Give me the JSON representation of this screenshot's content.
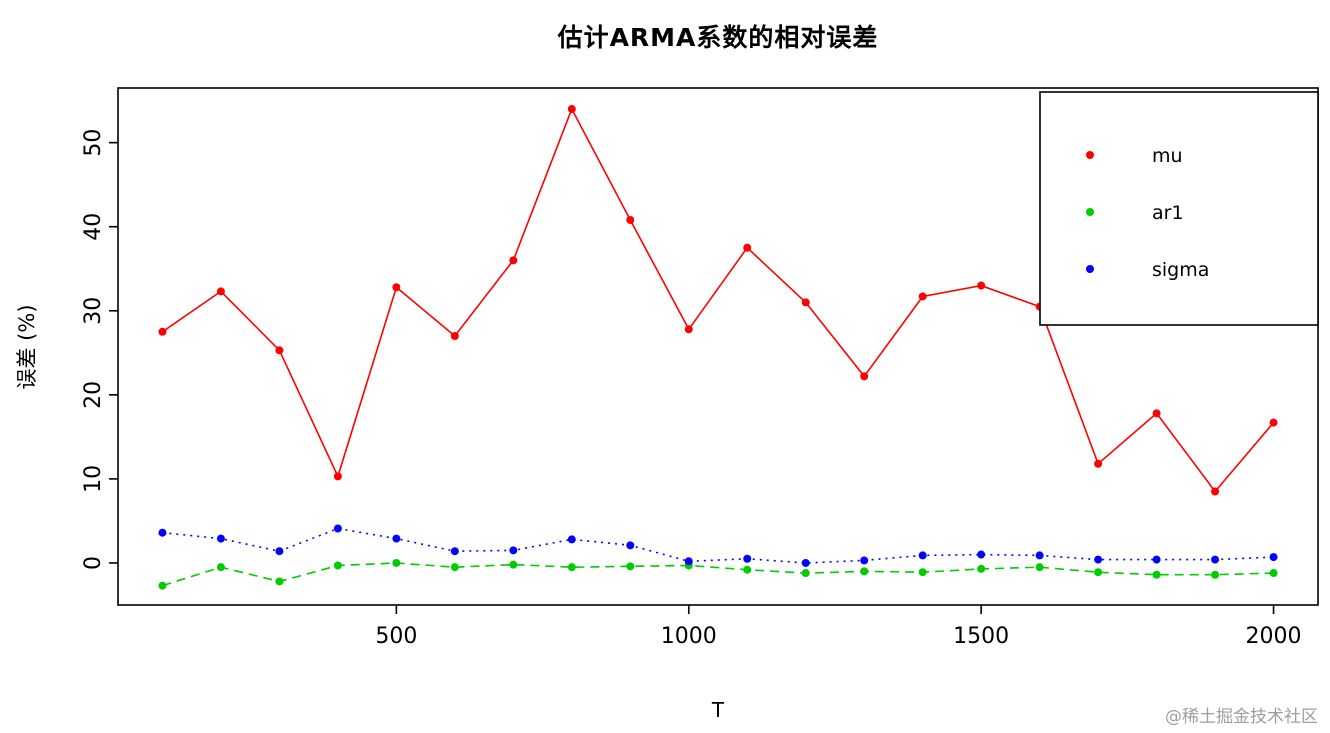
{
  "watermark": "@稀土掘金技术社区",
  "chart_data": {
    "type": "line",
    "title": "估计ARMA系数的相对误差",
    "xlabel": "T",
    "ylabel": "误差 (%)",
    "x": [
      100,
      200,
      300,
      400,
      500,
      600,
      700,
      800,
      900,
      1000,
      1100,
      1200,
      1300,
      1400,
      1500,
      1600,
      1700,
      1800,
      1900,
      2000
    ],
    "series": [
      {
        "name": "mu",
        "color": "#ff0000",
        "linestyle": "solid",
        "values": [
          27.5,
          32.3,
          25.3,
          10.3,
          32.8,
          27.0,
          36.0,
          54.0,
          40.8,
          27.8,
          37.5,
          31.0,
          22.2,
          31.7,
          33.0,
          30.5,
          11.8,
          17.8,
          8.5,
          16.7
        ]
      },
      {
        "name": "ar1",
        "color": "#00cc00",
        "linestyle": "dashed",
        "values": [
          -2.7,
          -0.5,
          -2.2,
          -0.3,
          0.0,
          -0.5,
          -0.2,
          -0.5,
          -0.4,
          -0.3,
          -0.8,
          -1.2,
          -1.0,
          -1.1,
          -0.7,
          -0.5,
          -1.1,
          -1.4,
          -1.4,
          -1.2
        ]
      },
      {
        "name": "sigma",
        "color": "#0000ff",
        "linestyle": "dotted",
        "values": [
          3.6,
          2.9,
          1.4,
          4.1,
          2.9,
          1.4,
          1.5,
          2.8,
          2.1,
          0.2,
          0.5,
          0.0,
          0.3,
          0.9,
          1.0,
          0.9,
          0.4,
          0.4,
          0.4,
          0.7
        ]
      }
    ],
    "xticks": [
      500,
      1000,
      1500,
      2000
    ],
    "yticks": [
      0,
      10,
      20,
      30,
      40,
      50
    ],
    "xlim": [
      24,
      2076
    ],
    "ylim": [
      -5,
      56.5
    ],
    "grid": false,
    "legend": {
      "position": "top-right",
      "entries": [
        "mu",
        "ar1",
        "sigma"
      ]
    }
  }
}
